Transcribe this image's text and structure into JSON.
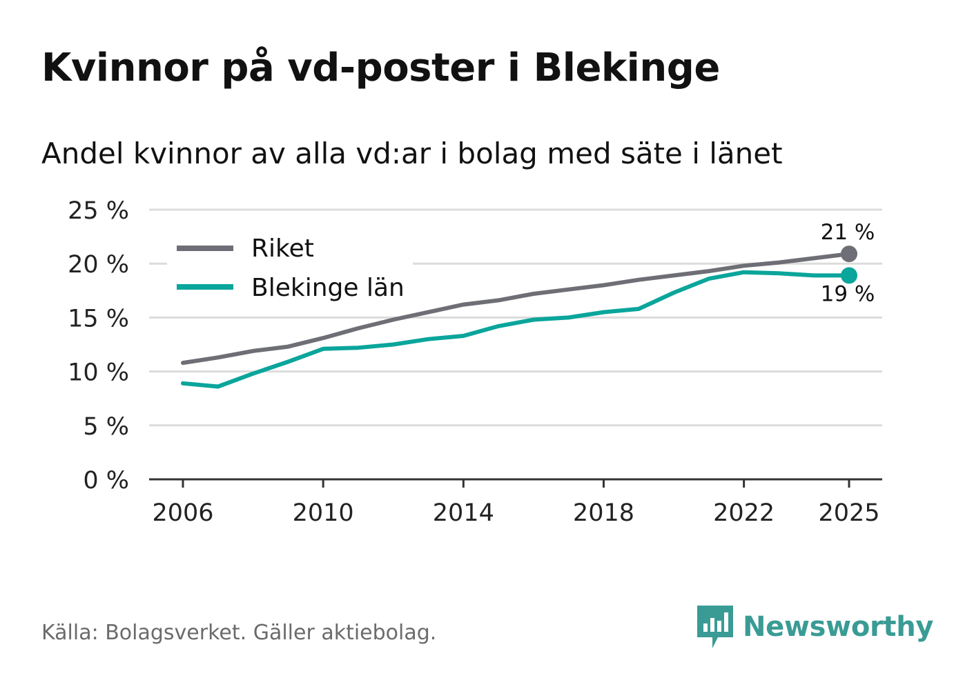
{
  "header": {
    "title": "Kvinnor på vd-poster i Blekinge",
    "subtitle": "Andel kvinnor av alla vd:ar i bolag med säte i länet"
  },
  "footer": {
    "source": "Källa: Bolagsverket. Gäller aktiebolag.",
    "brand": "Newsworthy",
    "brand_color": "#3a9b95"
  },
  "chart_data": {
    "type": "line",
    "title": "Kvinnor på vd-poster i Blekinge",
    "subtitle": "Andel kvinnor av alla vd:ar i bolag med säte i länet",
    "xlabel": "",
    "ylabel": "",
    "xlim": [
      2006,
      2025
    ],
    "ylim": [
      0,
      25
    ],
    "x_ticks": [
      2006,
      2010,
      2014,
      2018,
      2022,
      2025
    ],
    "x_tick_labels": [
      "2006",
      "2010",
      "2014",
      "2018",
      "2022",
      "2025"
    ],
    "y_ticks": [
      0,
      5,
      10,
      15,
      20,
      25
    ],
    "y_tick_labels": [
      "0 %",
      "5 %",
      "10 %",
      "15 %",
      "20 %",
      "25 %"
    ],
    "grid": true,
    "legend_position": "top-left",
    "x": [
      2006,
      2007,
      2008,
      2009,
      2010,
      2011,
      2012,
      2013,
      2014,
      2015,
      2016,
      2017,
      2018,
      2019,
      2020,
      2021,
      2022,
      2023,
      2024,
      2025
    ],
    "series": [
      {
        "name": "Riket",
        "color": "#6e6e76",
        "values": [
          10.8,
          11.3,
          11.9,
          12.3,
          13.1,
          14.0,
          14.8,
          15.5,
          16.2,
          16.6,
          17.2,
          17.6,
          18.0,
          18.5,
          18.9,
          19.3,
          19.8,
          20.1,
          20.5,
          20.9
        ],
        "end_label": "21 %"
      },
      {
        "name": "Blekinge län",
        "color": "#0aa59b",
        "values": [
          8.9,
          8.6,
          9.8,
          10.9,
          12.1,
          12.2,
          12.5,
          13.0,
          13.3,
          14.2,
          14.8,
          15.0,
          15.5,
          15.8,
          17.3,
          18.6,
          19.2,
          19.1,
          18.9,
          18.9
        ],
        "end_label": "19 %"
      }
    ]
  }
}
